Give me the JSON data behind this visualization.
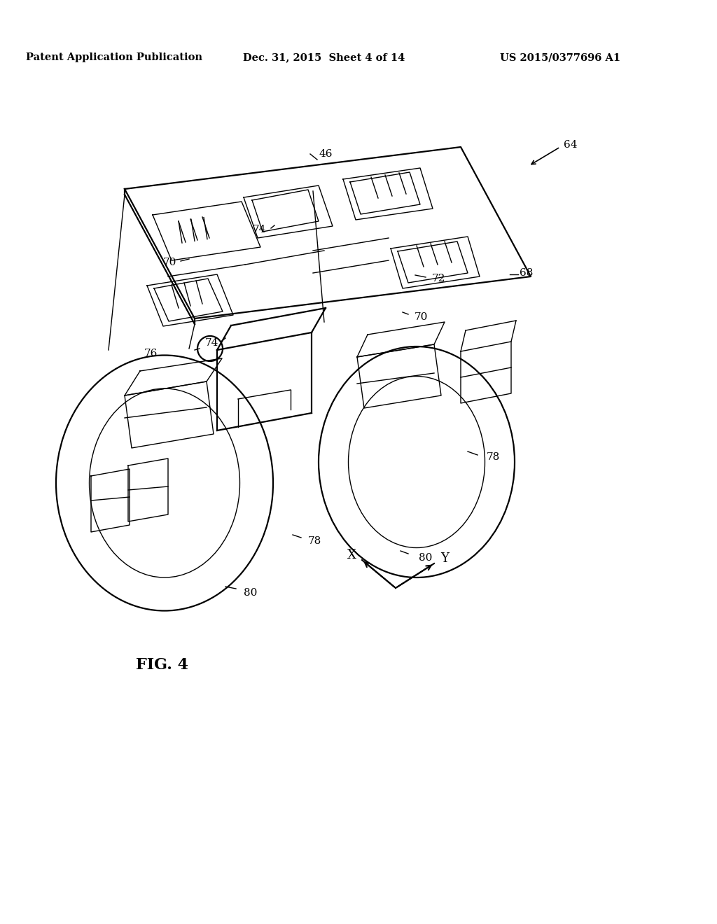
{
  "background_color": "#ffffff",
  "header_left": "Patent Application Publication",
  "header_mid": "Dec. 31, 2015  Sheet 4 of 14",
  "header_right": "US 2015/0377696 A1",
  "fig_label": "FIG. 4"
}
